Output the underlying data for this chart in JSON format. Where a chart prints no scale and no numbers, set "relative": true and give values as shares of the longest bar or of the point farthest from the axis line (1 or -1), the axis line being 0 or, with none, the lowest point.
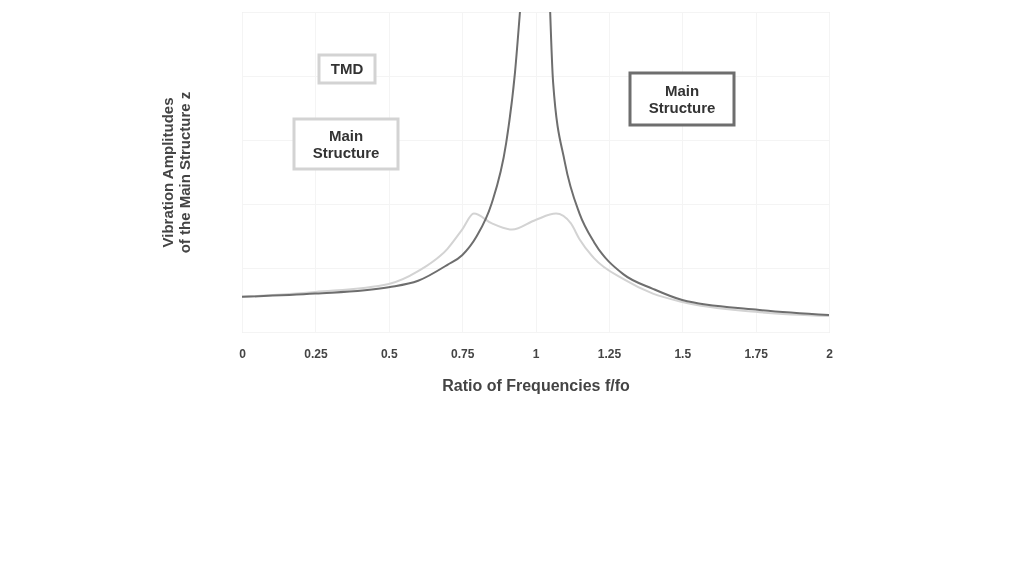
{
  "chart_data": {
    "type": "line",
    "relative": true,
    "xlabel": "Ratio of Frequencies  f/fo",
    "ylabel": "Vibration Amplitudes\nof the Main Structure  z",
    "xlim": [
      0,
      2
    ],
    "xticks": [
      0,
      0.25,
      0.5,
      0.75,
      1,
      1.25,
      1.5,
      1.75,
      2
    ],
    "grid": true,
    "tick_labels": "x",
    "annotations": [
      "TMD",
      "Main Structure",
      "Main Structure"
    ],
    "series": [
      {
        "color": "#d3d3d3",
        "x": [
          0,
          0.25,
          0.5,
          0.6,
          0.7,
          0.75,
          0.79,
          0.85,
          0.92,
          1.0,
          1.07,
          1.12,
          1.15,
          1.2,
          1.3,
          1.4,
          1.5,
          1.75,
          2
        ],
        "values": [
          0.11,
          0.125,
          0.15,
          0.19,
          0.26,
          0.32,
          0.37,
          0.34,
          0.32,
          0.35,
          0.37,
          0.34,
          0.29,
          0.23,
          0.165,
          0.12,
          0.094,
          0.063,
          0.05
        ]
      },
      {
        "color": "#6e6e6e",
        "x": [
          0,
          0.25,
          0.5,
          0.6,
          0.7,
          0.75,
          0.8,
          0.85,
          0.9,
          0.93,
          0.947,
          1.0,
          1.05,
          1.06,
          1.1,
          1.15,
          1.2,
          1.3,
          1.4,
          1.5,
          1.75,
          2
        ],
        "values": [
          0.11,
          0.12,
          0.14,
          0.16,
          0.21,
          0.24,
          0.3,
          0.4,
          0.59,
          0.81,
          1.0,
          null,
          1.0,
          0.78,
          0.53,
          0.37,
          0.28,
          0.18,
          0.135,
          0.1,
          0.07,
          0.053
        ]
      }
    ]
  }
}
